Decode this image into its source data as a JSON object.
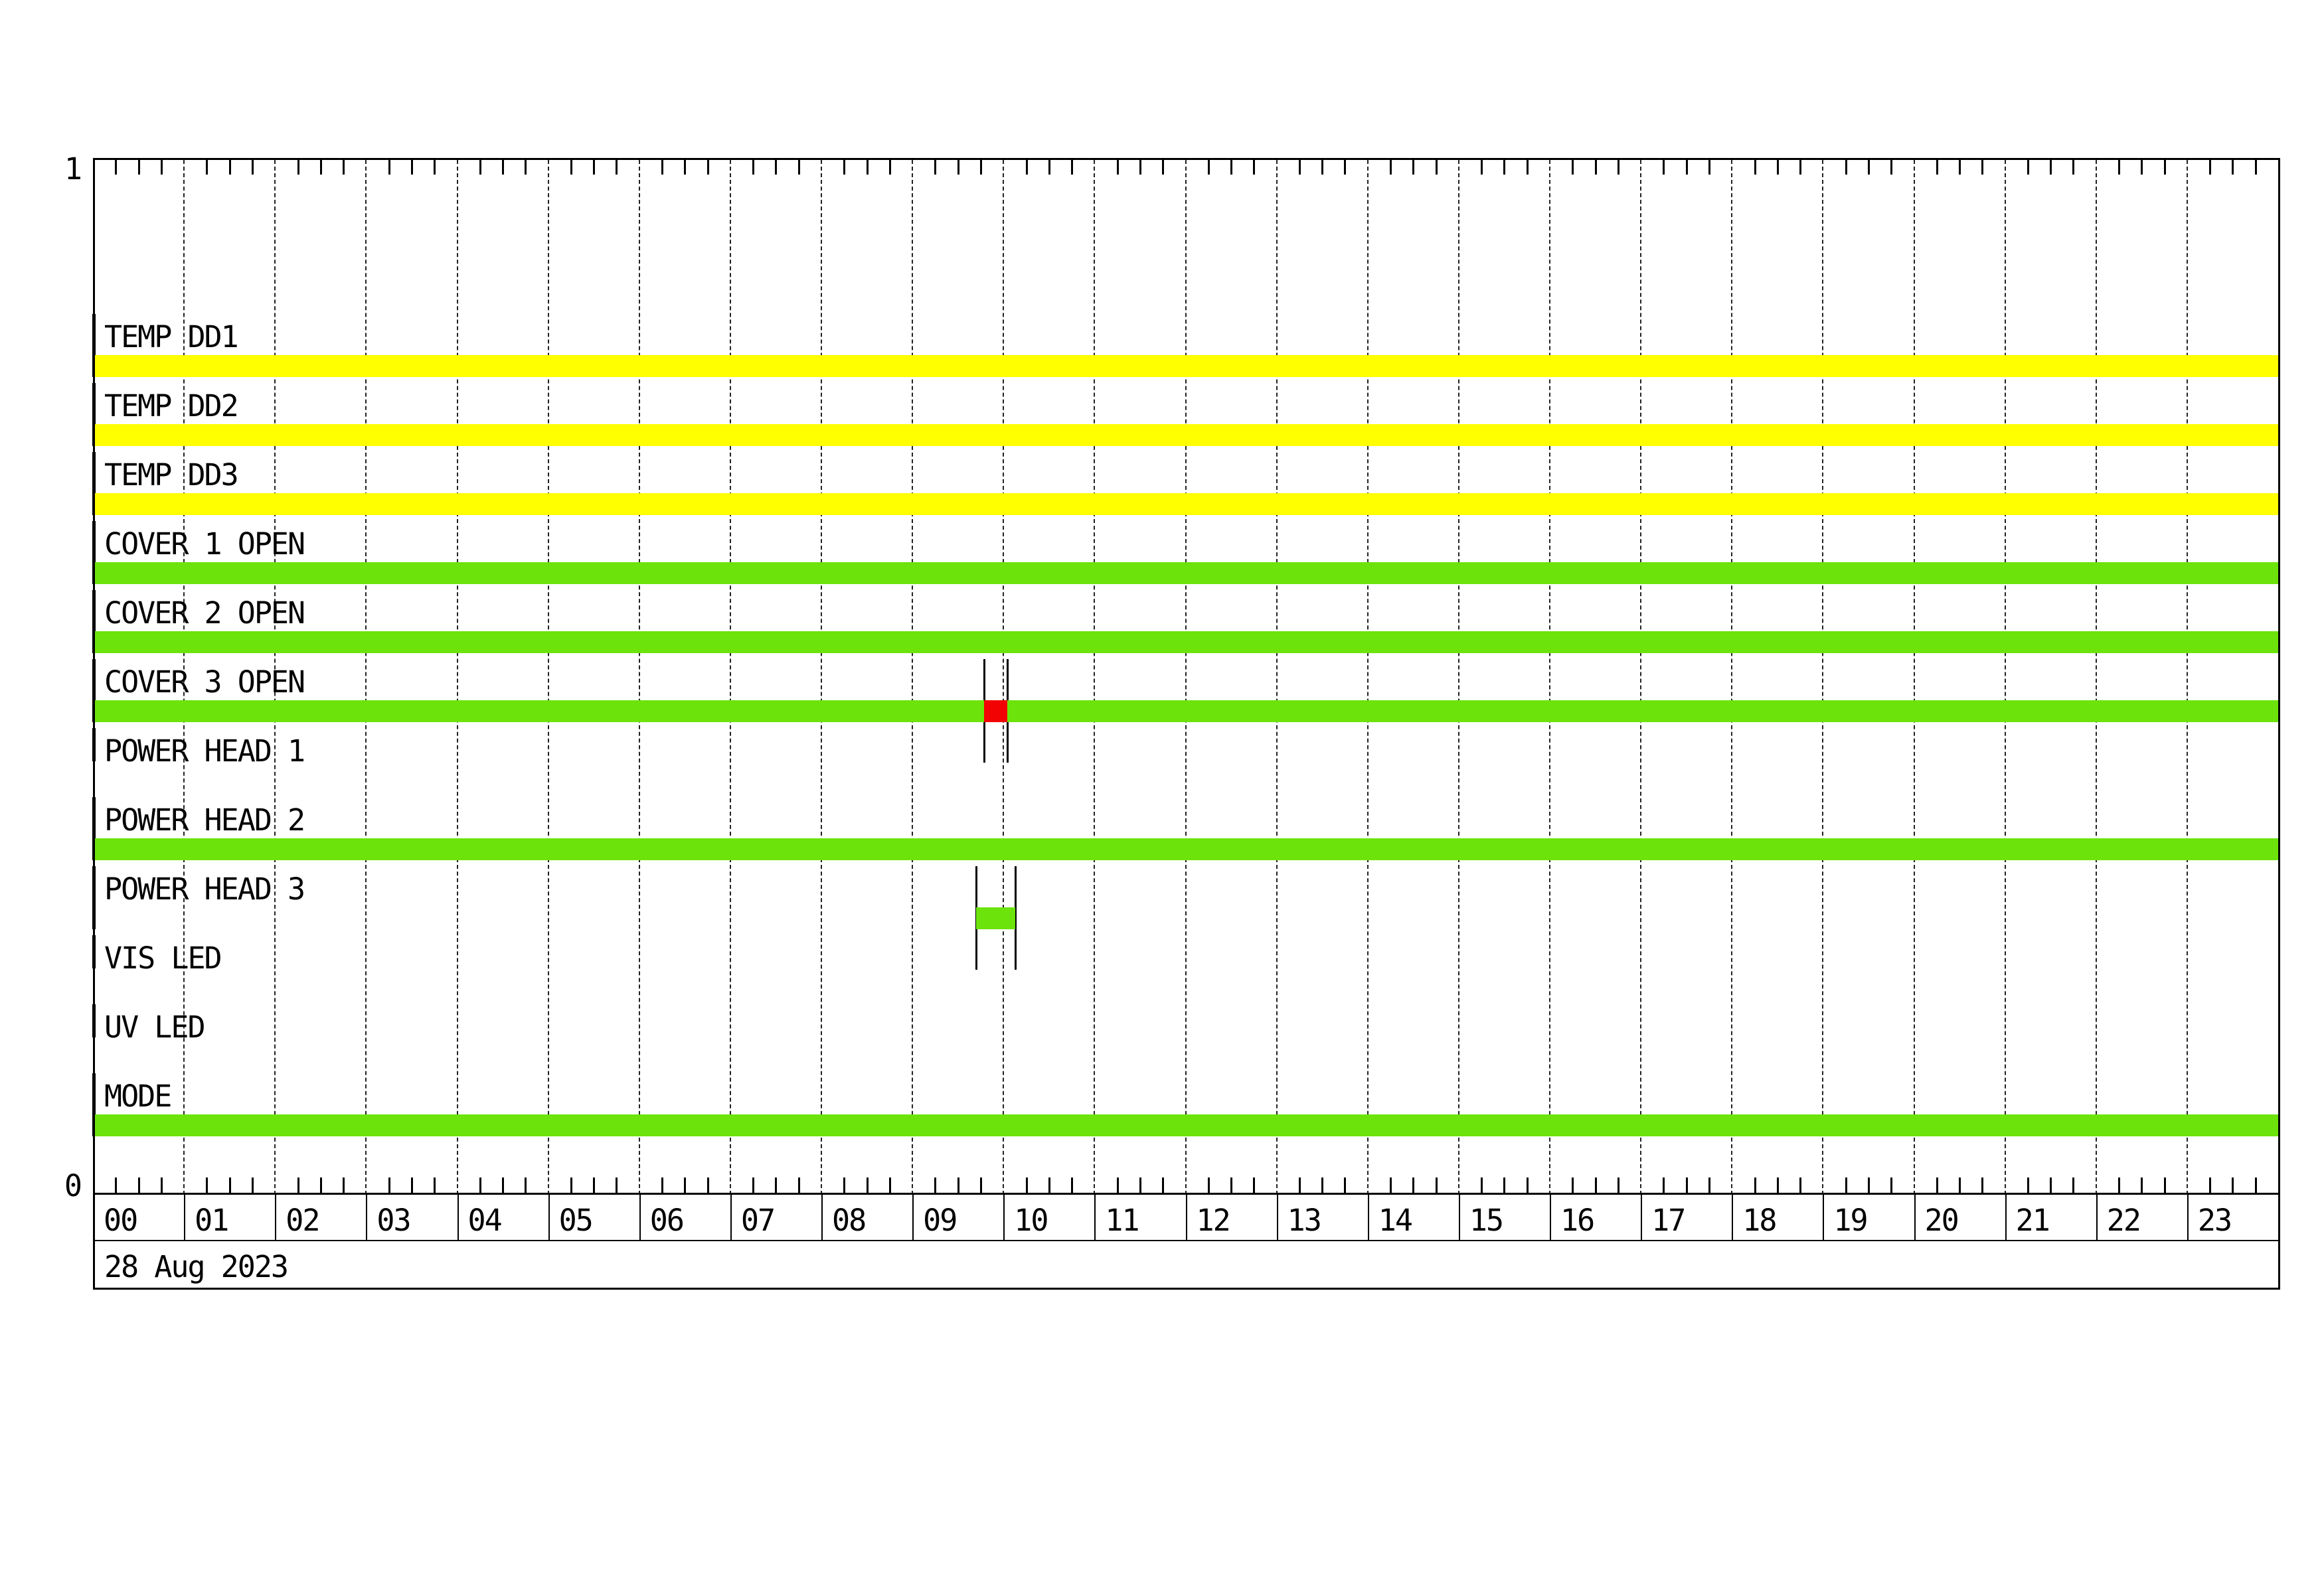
{
  "chart_data": {
    "type": "timeline-state",
    "title": "",
    "x_axis": {
      "unit": "hours",
      "range": [
        0,
        24
      ],
      "hour_labels": [
        "00",
        "01",
        "02",
        "03",
        "04",
        "05",
        "06",
        "07",
        "08",
        "09",
        "10",
        "11",
        "12",
        "13",
        "14",
        "15",
        "16",
        "17",
        "18",
        "19",
        "20",
        "21",
        "22",
        "23"
      ],
      "minor_tick_minutes": 15,
      "date": "28 Aug 2023",
      "grid": "dotted-vertical-per-hour"
    },
    "y_axis": {
      "top_label": "1",
      "bottom_label": "0"
    },
    "colors": {
      "yellow": "#FFFF00",
      "green": "#6CE30A",
      "red": "#F20202",
      "axis": "#000000"
    },
    "rows": [
      {
        "label": "TEMP DD1",
        "color": "#FFFF00",
        "intervals": [
          [
            0,
            24
          ]
        ],
        "overlay_segments": [],
        "transitions": []
      },
      {
        "label": "TEMP DD2",
        "color": "#FFFF00",
        "intervals": [
          [
            0,
            24
          ]
        ],
        "overlay_segments": [],
        "transitions": []
      },
      {
        "label": "TEMP DD3",
        "color": "#FFFF00",
        "intervals": [
          [
            0,
            24
          ]
        ],
        "overlay_segments": [],
        "transitions": []
      },
      {
        "label": "COVER 1 OPEN",
        "color": "#6CE30A",
        "intervals": [
          [
            0,
            24
          ]
        ],
        "overlay_segments": [],
        "transitions": []
      },
      {
        "label": "COVER 2 OPEN",
        "color": "#6CE30A",
        "intervals": [
          [
            0,
            24
          ]
        ],
        "overlay_segments": [],
        "transitions": []
      },
      {
        "label": "COVER 3 OPEN",
        "color": "#6CE30A",
        "intervals": [
          [
            0,
            24
          ]
        ],
        "overlay_segments": [
          {
            "start": 9.79,
            "end": 10.04,
            "color": "#F20202"
          }
        ],
        "transitions": [
          9.79,
          10.04
        ]
      },
      {
        "label": "POWER HEAD 1",
        "color": "#6CE30A",
        "intervals": [],
        "overlay_segments": [],
        "transitions": []
      },
      {
        "label": "POWER HEAD 2",
        "color": "#6CE30A",
        "intervals": [
          [
            0,
            24
          ]
        ],
        "overlay_segments": [],
        "transitions": []
      },
      {
        "label": "POWER HEAD 3",
        "color": "#6CE30A",
        "intervals": [
          [
            9.7,
            10.13
          ]
        ],
        "overlay_segments": [],
        "transitions": [
          9.7,
          10.13
        ]
      },
      {
        "label": "VIS LED",
        "color": "#6CE30A",
        "intervals": [],
        "overlay_segments": [],
        "transitions": []
      },
      {
        "label": "UV LED",
        "color": "#6CE30A",
        "intervals": [],
        "overlay_segments": [],
        "transitions": []
      },
      {
        "label": "MODE",
        "color": "#6CE30A",
        "intervals": [
          [
            0,
            24
          ]
        ],
        "overlay_segments": [],
        "transitions": []
      }
    ]
  }
}
